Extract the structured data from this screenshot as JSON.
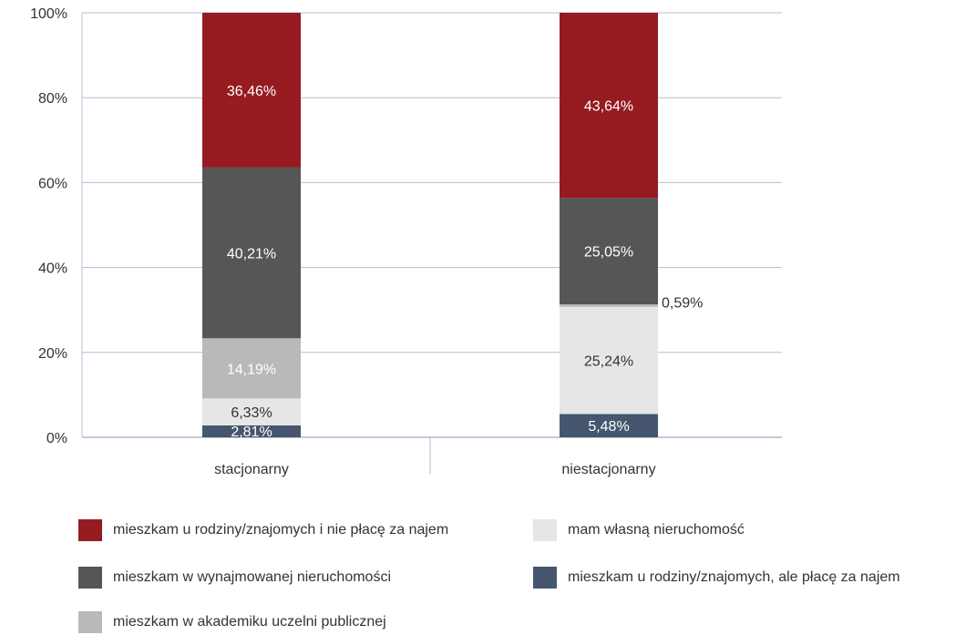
{
  "chart_data": {
    "type": "bar",
    "stacked": true,
    "categories": [
      "stacjonarny",
      "niestacjonarny"
    ],
    "y_ticks": [
      "0%",
      "20%",
      "40%",
      "60%",
      "80%",
      "100%"
    ],
    "ylim": [
      0,
      100
    ],
    "grid": true,
    "legend_position": "bottom",
    "series": [
      {
        "name": "mieszkam u rodziny/znajomych, ale płacę za najem",
        "color": "#45566e",
        "values": [
          2.81,
          5.48
        ],
        "labels": [
          "2,81%",
          "5,48%"
        ]
      },
      {
        "name": "mam własną nieruchomość",
        "color": "#e6e6e6",
        "values": [
          6.33,
          25.24
        ],
        "labels": [
          "6,33%",
          "25,24%"
        ]
      },
      {
        "name": "mieszkam w akademiku uczelni publicznej",
        "color": "#b9b9b9",
        "values": [
          14.19,
          0.59
        ],
        "labels": [
          "14,19%",
          "0,59%"
        ]
      },
      {
        "name": "mieszkam w wynajmowanej nieruchomości",
        "color": "#565656",
        "values": [
          40.21,
          25.05
        ],
        "labels": [
          "40,21%",
          "25,05%"
        ]
      },
      {
        "name": "mieszkam u rodziny/znajomych i nie płacę za najem",
        "color": "#961b21",
        "values": [
          36.46,
          43.64
        ],
        "labels": [
          "36,46%",
          "43,64%"
        ]
      }
    ]
  },
  "legend": [
    {
      "label": "mieszkam u rodziny/znajomych i nie płacę za najem",
      "color": "#961b21"
    },
    {
      "label": "mam własną nieruchomość",
      "color": "#e6e6e6"
    },
    {
      "label": "mieszkam w wynajmowanej nieruchomości",
      "color": "#565656"
    },
    {
      "label": "mieszkam u rodziny/znajomych, ale płacę za najem",
      "color": "#45566e"
    },
    {
      "label": "mieszkam w akademiku uczelni publicznej",
      "color": "#b9b9b9"
    }
  ]
}
